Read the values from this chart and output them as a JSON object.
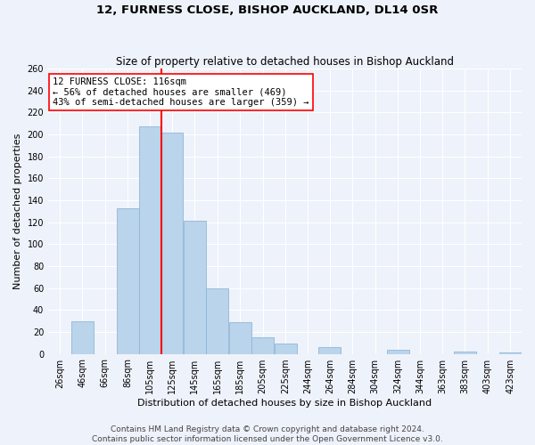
{
  "title": "12, FURNESS CLOSE, BISHOP AUCKLAND, DL14 0SR",
  "subtitle": "Size of property relative to detached houses in Bishop Auckland",
  "xlabel": "Distribution of detached houses by size in Bishop Auckland",
  "ylabel": "Number of detached properties",
  "bar_color": "#bad4eb",
  "bar_edge_color": "#90b8d8",
  "vline_x": 116,
  "vline_color": "red",
  "annotation_title": "12 FURNESS CLOSE: 116sqm",
  "annotation_line1": "← 56% of detached houses are smaller (469)",
  "annotation_line2": "43% of semi-detached houses are larger (359) →",
  "annotation_box_color": "white",
  "annotation_box_edge": "red",
  "categories": [
    "26sqm",
    "46sqm",
    "66sqm",
    "86sqm",
    "105sqm",
    "125sqm",
    "145sqm",
    "165sqm",
    "185sqm",
    "205sqm",
    "225sqm",
    "244sqm",
    "264sqm",
    "284sqm",
    "304sqm",
    "324sqm",
    "344sqm",
    "363sqm",
    "383sqm",
    "403sqm",
    "423sqm"
  ],
  "bin_edges": [
    16,
    36,
    56,
    76,
    96,
    115,
    135,
    155,
    175,
    195,
    215,
    235,
    254,
    274,
    294,
    314,
    334,
    353,
    373,
    393,
    413,
    433
  ],
  "counts": [
    0,
    30,
    0,
    133,
    207,
    202,
    121,
    60,
    29,
    15,
    9,
    0,
    6,
    0,
    0,
    4,
    0,
    0,
    2,
    0,
    1
  ],
  "ylim": [
    0,
    260
  ],
  "yticks": [
    0,
    20,
    40,
    60,
    80,
    100,
    120,
    140,
    160,
    180,
    200,
    220,
    240,
    260
  ],
  "footer_line1": "Contains HM Land Registry data © Crown copyright and database right 2024.",
  "footer_line2": "Contains public sector information licensed under the Open Government Licence v3.0.",
  "background_color": "#eef2fa",
  "grid_color": "white",
  "title_fontsize": 9.5,
  "subtitle_fontsize": 8.5,
  "axis_label_fontsize": 8,
  "tick_fontsize": 7,
  "footer_fontsize": 6.5
}
